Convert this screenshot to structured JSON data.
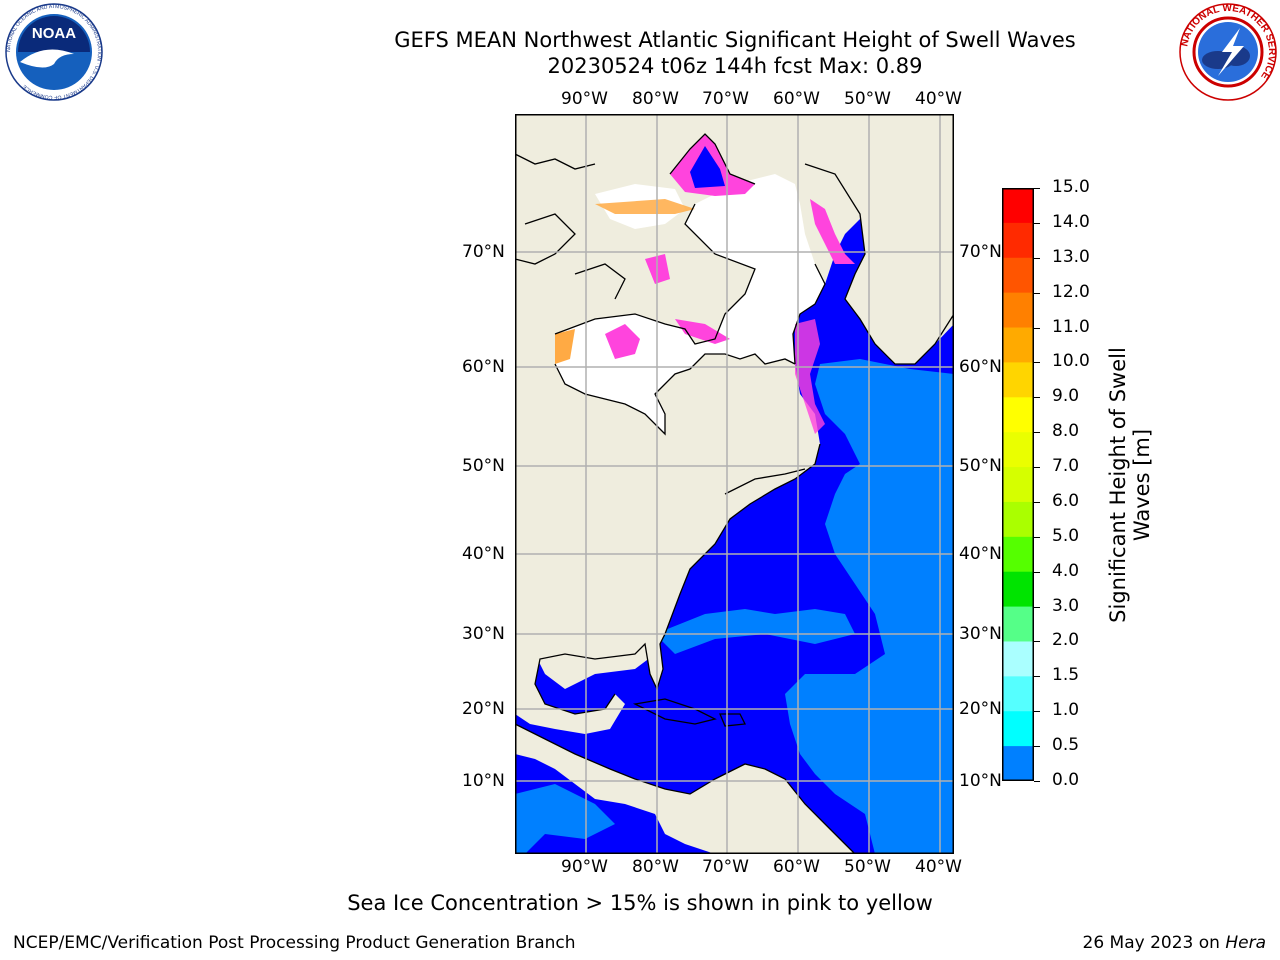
{
  "header": {
    "title": "GEFS MEAN Northwest Atlantic Significant Height of Swell Waves",
    "subtitle": "20230524 t06z 144h fcst   Max: 0.89"
  },
  "logos": {
    "left": {
      "icon": "noaa-logo-icon",
      "text": "NOAA",
      "ring_text": "NATIONAL OCEANIC AND ATMOSPHERIC ADMINISTRATION · U.S. DEPARTMENT OF COMMERCE"
    },
    "right": {
      "icon": "nws-logo-icon",
      "ring_text": "NATIONAL WEATHER SERVICE"
    }
  },
  "map": {
    "longitude_labels": [
      "90°W",
      "80°W",
      "70°W",
      "60°W",
      "50°W",
      "40°W"
    ],
    "latitude_labels": [
      "70°N",
      "60°N",
      "50°N",
      "40°N",
      "30°N",
      "20°N",
      "10°N"
    ],
    "colors": {
      "land": "#efedde",
      "ice_free_white": "#ffffff",
      "ocean_low": "#0000ff",
      "ocean_mid": "#0080ff",
      "grid": "#b0b0b0",
      "ice_pink": "#ff44dd",
      "ice_orange": "#ffaa44"
    }
  },
  "colorbar": {
    "title": "Significant Height of Swell Waves [m]",
    "tick_labels": [
      "15.0",
      "14.0",
      "13.0",
      "12.0",
      "11.0",
      "10.0",
      "9.0",
      "8.0",
      "7.0",
      "6.0",
      "5.0",
      "4.0",
      "3.0",
      "2.0",
      "1.5",
      "1.0",
      "0.5",
      "0.0"
    ],
    "colors_top_to_bottom": [
      "#ff0000",
      "#ff2a00",
      "#ff5500",
      "#ff8000",
      "#ffaa00",
      "#ffd500",
      "#ffff00",
      "#eaff00",
      "#d5ff00",
      "#aaff00",
      "#55ff00",
      "#00e400",
      "#55ff88",
      "#aaffff",
      "#55ffff",
      "#00ffff",
      "#0080ff",
      "#0000ff"
    ]
  },
  "footer": {
    "note": "Sea Ice Concentration > 15% is shown in pink to yellow",
    "credit": "NCEP/EMC/Verification Post Processing Product Generation Branch",
    "date_text": "26 May 2023 on ",
    "machine": "Hera"
  }
}
